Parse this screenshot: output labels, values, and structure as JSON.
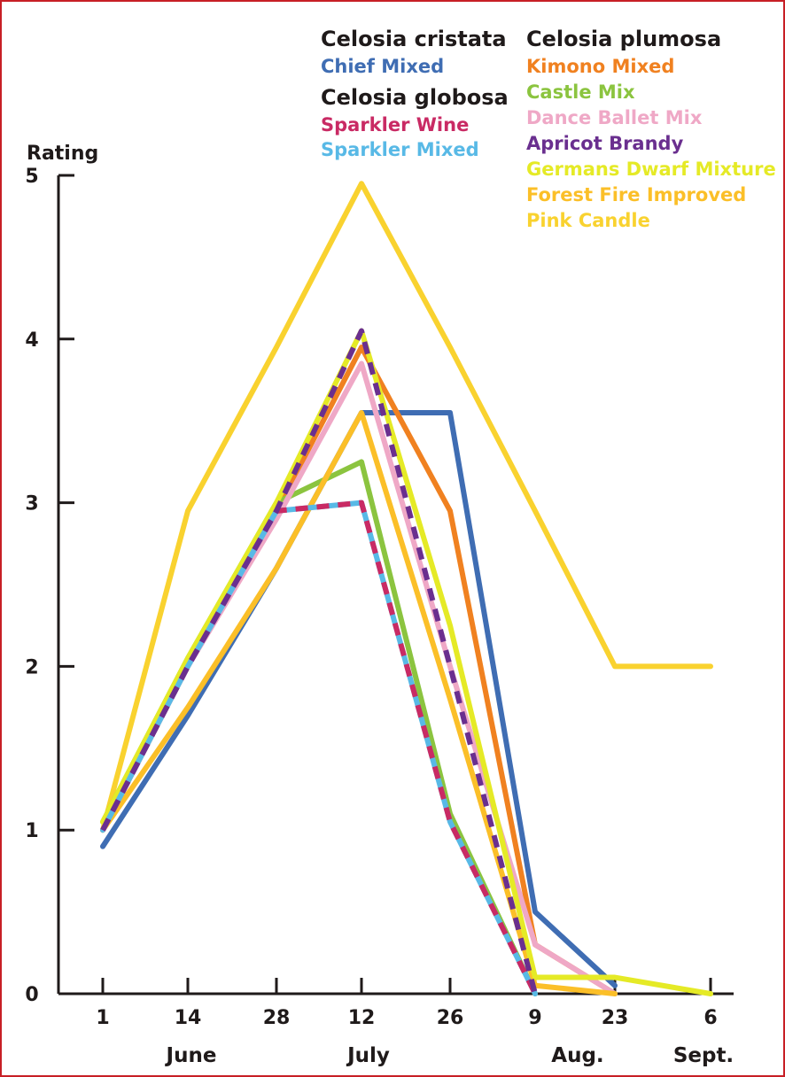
{
  "chart_data": {
    "type": "line",
    "ylabel": "Rating",
    "ylim": [
      0,
      5
    ],
    "yticks": [
      "0",
      "1",
      "2",
      "3",
      "4",
      "5"
    ],
    "x": [
      "1 June",
      "14 June",
      "28 June",
      "12 July",
      "26 July",
      "9 Aug.",
      "23 Aug.",
      "6 Sept."
    ],
    "x_tick_labels": [
      "1",
      "14",
      "28",
      "12",
      "26",
      "9",
      "23",
      "6"
    ],
    "months": [
      "June",
      "July",
      "Aug.",
      "Sept."
    ],
    "legend_groups": [
      {
        "title": "Celosia cristata",
        "items": [
          "Chief Mixed"
        ]
      },
      {
        "title": "Celosia globosa",
        "items": [
          "Sparkler Wine",
          "Sparkler Mixed"
        ]
      },
      {
        "title": "Celosia plumosa",
        "items": [
          "Kimono Mixed",
          "Castle Mix",
          "Dance Ballet Mix",
          "Apricot Brandy",
          "Germans Dwarf Mixture",
          "Forest Fire Improved",
          "Pink Candle"
        ]
      }
    ],
    "series": [
      {
        "name": "Chief Mixed",
        "color": "#3f6db3",
        "dash": false,
        "values": [
          0.9,
          1.7,
          2.6,
          3.55,
          3.55,
          0.5,
          0.05,
          null
        ]
      },
      {
        "name": "Kimono Mixed",
        "color": "#f08120",
        "dash": false,
        "values": [
          1.0,
          2.0,
          2.95,
          3.95,
          2.95,
          0.3,
          0.0,
          null
        ]
      },
      {
        "name": "Castle Mix",
        "color": "#8bc43f",
        "dash": false,
        "values": [
          1.05,
          2.05,
          3.0,
          3.25,
          1.1,
          0.0,
          null,
          null
        ]
      },
      {
        "name": "Dance Ballet Mix",
        "color": "#efa8c6",
        "dash": false,
        "values": [
          1.0,
          2.0,
          2.9,
          3.85,
          2.0,
          0.3,
          0.0,
          null
        ]
      },
      {
        "name": "Germans Dwarf Mixture",
        "color": "#e5ea26",
        "dash": false,
        "values": [
          1.05,
          2.05,
          3.0,
          4.05,
          2.25,
          0.1,
          0.1,
          0.0
        ]
      },
      {
        "name": "Forest Fire Improved",
        "color": "#fbbf28",
        "dash": false,
        "values": [
          1.0,
          1.75,
          2.6,
          3.55,
          1.8,
          0.05,
          0.0,
          null
        ]
      },
      {
        "name": "Pink Candle",
        "color": "#f9d22f",
        "dash": false,
        "values": [
          1.0,
          2.95,
          3.95,
          4.95,
          3.95,
          2.95,
          2.0,
          2.0
        ]
      },
      {
        "name": "Sparkler Mixed",
        "color": "#58b9e6",
        "dash": false,
        "values": [
          1.0,
          2.0,
          2.95,
          3.0,
          1.05,
          0.0,
          null,
          null
        ]
      },
      {
        "name": "Sparkler Wine",
        "color": "#c92a64",
        "dash": true,
        "values": [
          1.0,
          2.0,
          2.95,
          3.0,
          1.05,
          0.0,
          null,
          null
        ]
      },
      {
        "name": "Apricot Brandy",
        "color": "#6a2f8f",
        "dash": true,
        "values": [
          1.0,
          2.0,
          2.95,
          4.05,
          2.0,
          0.0,
          null,
          null
        ]
      }
    ],
    "legend_colors": {
      "Chief Mixed": "#3f6db3",
      "Sparkler Wine": "#c92a64",
      "Sparkler Mixed": "#58b9e6",
      "Kimono Mixed": "#f08120",
      "Castle Mix": "#8bc43f",
      "Dance Ballet Mix": "#efa8c6",
      "Apricot Brandy": "#6a2f8f",
      "Germans Dwarf Mixture": "#e5ea26",
      "Forest Fire Improved": "#fbbf28",
      "Pink Candle": "#f9d22f"
    },
    "grid": false,
    "legend_position": "top"
  }
}
